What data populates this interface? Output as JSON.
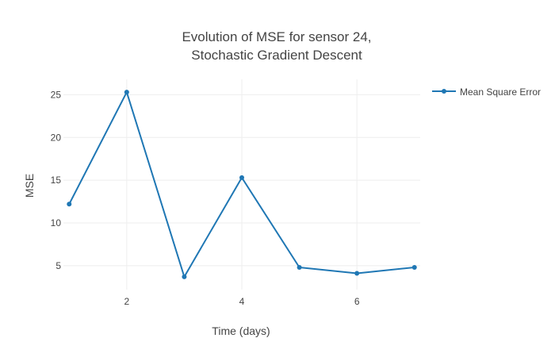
{
  "chart_data": {
    "type": "line",
    "title": [
      "Evolution of MSE for sensor 24,",
      "Stochastic Gradient Descent"
    ],
    "xlabel": "Time (days)",
    "ylabel": "MSE",
    "x": [
      1,
      2,
      3,
      4,
      5,
      6,
      7
    ],
    "series": [
      {
        "name": "Mean Square Error",
        "color": "#1f77b4",
        "values": [
          12.2,
          25.3,
          3.7,
          15.3,
          4.8,
          4.1,
          4.8
        ]
      }
    ],
    "xlim": [
      0.9,
      7.1
    ],
    "ylim": [
      2.2,
      26.8
    ],
    "xticks": [
      2,
      4,
      6
    ],
    "yticks": [
      5,
      10,
      15,
      20,
      25
    ],
    "grid": true,
    "legend": "top-right"
  }
}
